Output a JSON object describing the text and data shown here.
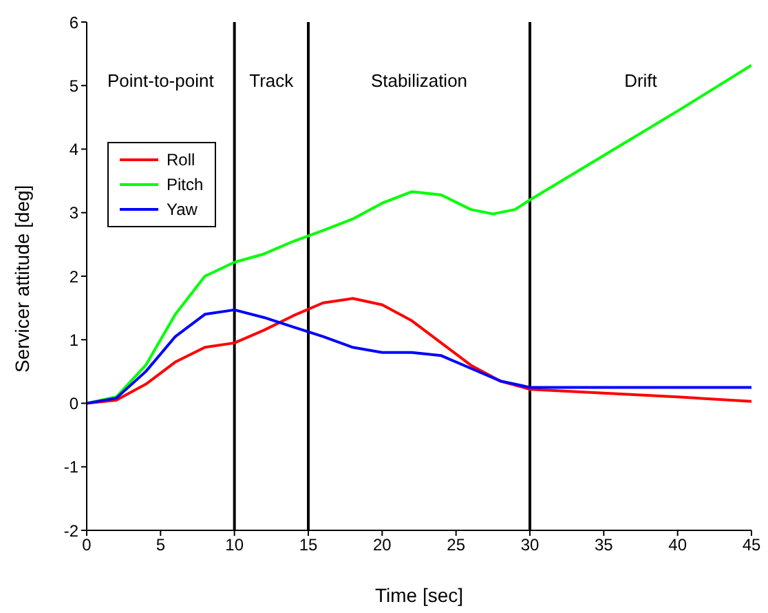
{
  "chart_data": {
    "type": "line",
    "xlabel": "Time [sec]",
    "ylabel": "Servicer attitude [deg]",
    "xlim": [
      0,
      45
    ],
    "xticks": [
      0,
      5,
      10,
      15,
      20,
      25,
      30,
      35,
      40,
      45
    ],
    "ylim": [
      -2,
      6
    ],
    "yticks": [
      -2,
      -1,
      0,
      1,
      2,
      3,
      4,
      5,
      6
    ],
    "grid": false,
    "legend": "top left",
    "marker": "none",
    "line_style": "solid",
    "series": [
      {
        "name": "Roll",
        "color": "#ff0000",
        "x": [
          0,
          2,
          4,
          6,
          8,
          10,
          12,
          14,
          16,
          18,
          20,
          22,
          24,
          26,
          28,
          30,
          35,
          40,
          45
        ],
        "values": [
          0,
          0.05,
          0.3,
          0.65,
          0.88,
          0.95,
          1.15,
          1.38,
          1.58,
          1.65,
          1.55,
          1.3,
          0.95,
          0.6,
          0.35,
          0.22,
          0.16,
          0.1,
          0.03
        ]
      },
      {
        "name": "Pitch",
        "color": "#00ff00",
        "x": [
          0,
          2,
          4,
          6,
          8,
          10,
          12,
          14,
          16,
          18,
          20,
          22,
          24,
          26,
          27.5,
          29,
          30,
          35,
          40,
          45
        ],
        "values": [
          0,
          0.1,
          0.6,
          1.4,
          2.0,
          2.22,
          2.35,
          2.55,
          2.72,
          2.9,
          3.15,
          3.33,
          3.28,
          3.05,
          2.98,
          3.05,
          3.2,
          3.9,
          4.6,
          5.32
        ]
      },
      {
        "name": "Yaw",
        "color": "#0000ff",
        "x": [
          0,
          2,
          4,
          6,
          8,
          10,
          12,
          14,
          16,
          18,
          20,
          22,
          24,
          26,
          28,
          30,
          35,
          45
        ],
        "values": [
          0,
          0.08,
          0.5,
          1.05,
          1.4,
          1.47,
          1.35,
          1.2,
          1.05,
          0.88,
          0.8,
          0.8,
          0.75,
          0.55,
          0.35,
          0.25,
          0.25,
          0.25
        ]
      }
    ],
    "ref_lines": [
      {
        "axis": "x",
        "value": 10,
        "color": "#000000"
      },
      {
        "axis": "x",
        "value": 15,
        "color": "#000000"
      },
      {
        "axis": "x",
        "value": 30,
        "color": "#000000"
      }
    ],
    "annotations": [
      "Point-to-point",
      "Track",
      "Stabilization",
      "Drift"
    ]
  }
}
